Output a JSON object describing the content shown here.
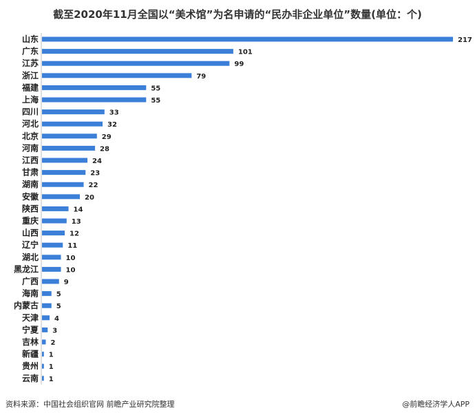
{
  "chart_data": {
    "type": "bar",
    "orientation": "horizontal",
    "title": "截至2020年11月全国以“美术馆”为名申请的“民办非企业单位”数量(单位：个)",
    "categories": [
      "山东",
      "广东",
      "江苏",
      "浙江",
      "福建",
      "上海",
      "四川",
      "河北",
      "北京",
      "河南",
      "江西",
      "甘肃",
      "湖南",
      "安徽",
      "陕西",
      "重庆",
      "山西",
      "辽宁",
      "湖北",
      "黑龙江",
      "广西",
      "海南",
      "内蒙古",
      "天津",
      "宁夏",
      "吉林",
      "新疆",
      "贵州",
      "云南"
    ],
    "values": [
      217,
      101,
      99,
      79,
      55,
      55,
      33,
      32,
      29,
      28,
      24,
      23,
      22,
      20,
      14,
      13,
      12,
      11,
      10,
      10,
      9,
      5,
      5,
      4,
      3,
      2,
      1,
      1,
      1
    ],
    "xlim": [
      0,
      217
    ],
    "bar_color": "#3b7fd9",
    "grid": false,
    "data_labels": true
  },
  "footer": {
    "source": "资料来源：中国社会组织官网 前瞻产业研究院整理",
    "brand": "@前瞻经济学人APP"
  }
}
